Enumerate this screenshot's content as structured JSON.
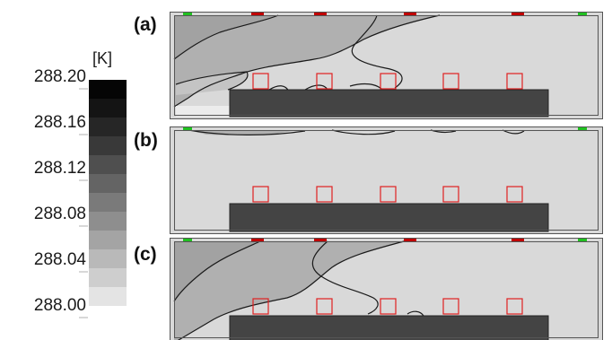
{
  "colorbar": {
    "unit": "[K]",
    "ticks": [
      "288.20",
      "288.16",
      "288.12",
      "288.08",
      "288.04",
      "288.00"
    ],
    "colors": [
      "#e4e4e4",
      "#cecece",
      "#b9b9b9",
      "#a4a4a4",
      "#8e8e8e",
      "#7a7a7a",
      "#646464",
      "#4f4f4f",
      "#393939",
      "#262626",
      "#141414",
      "#050505"
    ]
  },
  "panels": [
    {
      "label": "(a)"
    },
    {
      "label": "(b)"
    },
    {
      "label": "(c)"
    }
  ],
  "colors": {
    "background_field": "#d9d9d9",
    "warm_region": "#b0b0b0",
    "obstacle": "#444444",
    "sensor_box": "#e02020",
    "inlet_marker": "#20c020",
    "heat_source": "#c00000"
  },
  "sensors_per_panel": 5
}
